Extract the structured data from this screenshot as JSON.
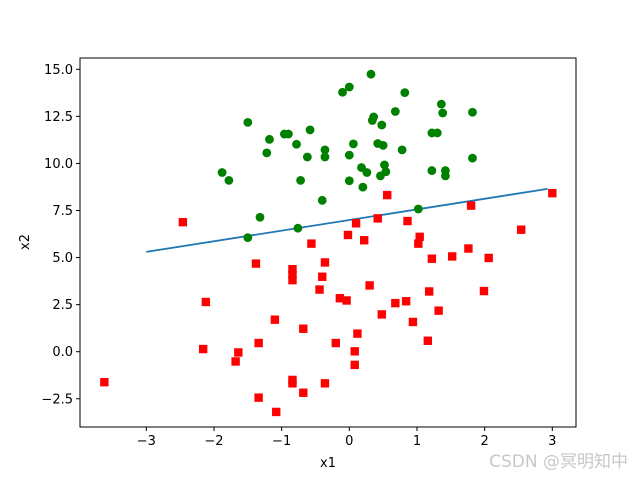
{
  "chart_data": {
    "type": "scatter",
    "xlabel": "x1",
    "ylabel": "x2",
    "xlim": [
      -3.98,
      3.35
    ],
    "ylim": [
      -4.0,
      15.6
    ],
    "xticks": [
      -3,
      -2,
      -1,
      0,
      1,
      2,
      3
    ],
    "yticks": [
      -2.5,
      0.0,
      2.5,
      5.0,
      7.5,
      10.0,
      12.5,
      15.0
    ],
    "ytick_labels": [
      "−2.5",
      "0.0",
      "2.5",
      "5.0",
      "7.5",
      "10.0",
      "12.5",
      "15.0"
    ],
    "xtick_labels": [
      "−3",
      "−2",
      "−1",
      "0",
      "1",
      "2",
      "3"
    ],
    "grid": false,
    "colors": {
      "class0": "#008000",
      "class1": "#ff0000",
      "line": "#1f77b4"
    },
    "series": [
      {
        "marker": "circle",
        "color": "#008000",
        "points": [
          [
            0.32,
            14.74
          ],
          [
            0.0,
            14.06
          ],
          [
            -0.1,
            13.78
          ],
          [
            0.82,
            13.76
          ],
          [
            1.36,
            13.15
          ],
          [
            1.38,
            12.68
          ],
          [
            1.82,
            12.72
          ],
          [
            0.68,
            12.76
          ],
          [
            0.36,
            12.47
          ],
          [
            0.34,
            12.28
          ],
          [
            -1.5,
            12.18
          ],
          [
            0.48,
            12.04
          ],
          [
            -0.58,
            11.78
          ],
          [
            -0.96,
            11.56
          ],
          [
            -0.9,
            11.56
          ],
          [
            1.22,
            11.62
          ],
          [
            1.3,
            11.62
          ],
          [
            -1.18,
            11.28
          ],
          [
            -0.78,
            11.02
          ],
          [
            0.06,
            11.04
          ],
          [
            0.42,
            11.06
          ],
          [
            0.5,
            10.96
          ],
          [
            -0.36,
            10.72
          ],
          [
            0.78,
            10.72
          ],
          [
            -1.22,
            10.56
          ],
          [
            -0.62,
            10.34
          ],
          [
            -0.36,
            10.34
          ],
          [
            0.0,
            10.44
          ],
          [
            1.82,
            10.28
          ],
          [
            0.52,
            9.92
          ],
          [
            0.18,
            9.78
          ],
          [
            0.54,
            9.56
          ],
          [
            1.42,
            9.62
          ],
          [
            -1.88,
            9.52
          ],
          [
            0.26,
            9.52
          ],
          [
            1.22,
            9.62
          ],
          [
            1.42,
            9.34
          ],
          [
            0.46,
            9.34
          ],
          [
            -1.78,
            9.1
          ],
          [
            -0.72,
            9.1
          ],
          [
            0.0,
            9.08
          ],
          [
            0.2,
            8.74
          ],
          [
            -0.4,
            8.04
          ],
          [
            1.02,
            7.58
          ],
          [
            -1.32,
            7.14
          ],
          [
            -0.76,
            6.56
          ],
          [
            -1.5,
            6.06
          ]
        ]
      },
      {
        "marker": "square",
        "color": "#ff0000",
        "points": [
          [
            3.0,
            8.42
          ],
          [
            0.56,
            8.32
          ],
          [
            1.8,
            7.76
          ],
          [
            -2.46,
            6.88
          ],
          [
            0.42,
            7.08
          ],
          [
            0.86,
            6.94
          ],
          [
            0.1,
            6.82
          ],
          [
            2.54,
            6.48
          ],
          [
            -0.02,
            6.2
          ],
          [
            1.04,
            6.1
          ],
          [
            0.22,
            5.92
          ],
          [
            1.02,
            5.74
          ],
          [
            -0.56,
            5.74
          ],
          [
            1.76,
            5.48
          ],
          [
            1.52,
            5.06
          ],
          [
            2.06,
            4.98
          ],
          [
            1.22,
            4.94
          ],
          [
            -1.38,
            4.68
          ],
          [
            -0.36,
            4.74
          ],
          [
            -0.84,
            4.38
          ],
          [
            -0.84,
            4.08
          ],
          [
            -0.4,
            3.98
          ],
          [
            -0.84,
            3.8
          ],
          [
            0.3,
            3.52
          ],
          [
            -0.44,
            3.3
          ],
          [
            1.18,
            3.2
          ],
          [
            1.99,
            3.22
          ],
          [
            -0.14,
            2.84
          ],
          [
            -0.04,
            2.72
          ],
          [
            0.84,
            2.68
          ],
          [
            0.68,
            2.58
          ],
          [
            -2.12,
            2.64
          ],
          [
            1.32,
            2.18
          ],
          [
            0.48,
            1.98
          ],
          [
            -1.1,
            1.7
          ],
          [
            0.94,
            1.58
          ],
          [
            -0.68,
            1.22
          ],
          [
            0.12,
            0.96
          ],
          [
            1.16,
            0.58
          ],
          [
            -1.34,
            0.46
          ],
          [
            -0.2,
            0.46
          ],
          [
            -2.16,
            0.14
          ],
          [
            -1.64,
            -0.04
          ],
          [
            0.08,
            0.02
          ],
          [
            -1.68,
            -0.52
          ],
          [
            0.08,
            -0.7
          ],
          [
            -3.62,
            -1.62
          ],
          [
            -0.84,
            -1.5
          ],
          [
            -0.84,
            -1.68
          ],
          [
            -0.36,
            -1.68
          ],
          [
            -0.68,
            -2.18
          ],
          [
            -1.34,
            -2.44
          ],
          [
            -1.08,
            -3.2
          ]
        ]
      }
    ],
    "line": {
      "x": [
        -3.0,
        2.93
      ],
      "y": [
        5.3,
        8.65
      ]
    }
  },
  "watermark": "CSDN @冥明知中"
}
